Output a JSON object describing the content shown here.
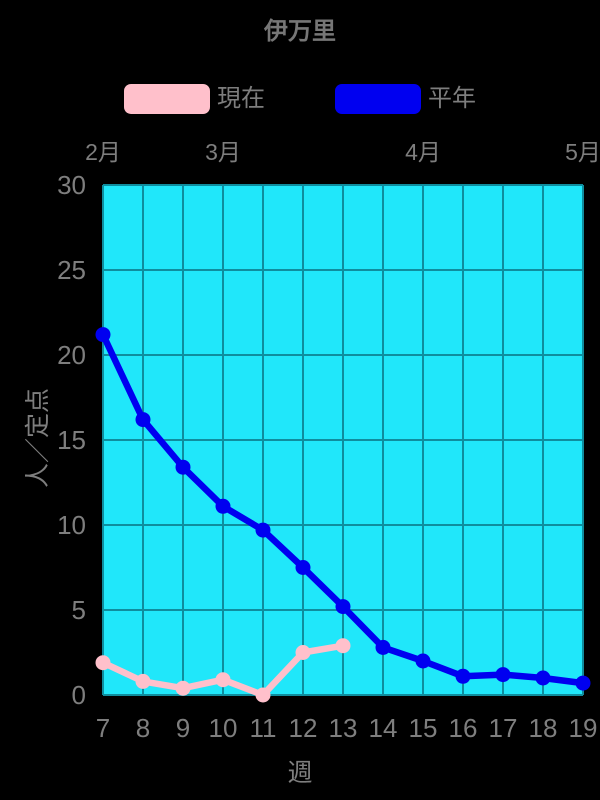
{
  "page": {
    "background_color": "#000000",
    "text_color": "#7e7e7e"
  },
  "header": {
    "title": "伊万里"
  },
  "legend": {
    "items": [
      {
        "label": "現在",
        "color": "#FFC0CB"
      },
      {
        "label": "平年",
        "color": "#0000F0"
      }
    ]
  },
  "chart_data": {
    "type": "line",
    "title": "伊万里",
    "xlabel": "週",
    "ylabel": "人／定点",
    "x_weeks": [
      7,
      8,
      9,
      10,
      11,
      12,
      13,
      14,
      15,
      16,
      17,
      18,
      19
    ],
    "xlim": [
      7,
      19
    ],
    "ylim": [
      0,
      30
    ],
    "yticks": [
      0,
      5,
      10,
      15,
      20,
      25,
      30
    ],
    "top_axis_months": [
      {
        "label": "2月",
        "week": 7
      },
      {
        "label": "3月",
        "week": 10
      },
      {
        "label": "4月",
        "week": 15
      },
      {
        "label": "5月",
        "week": 19
      }
    ],
    "grid": true,
    "legend_position": "top",
    "plot_bg_color": "#20E7FA",
    "grid_color": "#0F8D9E",
    "series": [
      {
        "name": "現在",
        "color": "#FFC0CB",
        "x": [
          7,
          8,
          9,
          10,
          11,
          12,
          13
        ],
        "values": [
          1.9,
          0.8,
          0.4,
          0.9,
          0.0,
          2.5,
          2.9
        ]
      },
      {
        "name": "平年",
        "color": "#0000F0",
        "x": [
          7,
          8,
          9,
          10,
          11,
          12,
          13,
          14,
          15,
          16,
          17,
          18,
          19
        ],
        "values": [
          21.2,
          16.2,
          13.4,
          11.1,
          9.7,
          7.5,
          5.2,
          2.8,
          2.0,
          1.1,
          1.2,
          1.0,
          0.7
        ]
      }
    ]
  }
}
